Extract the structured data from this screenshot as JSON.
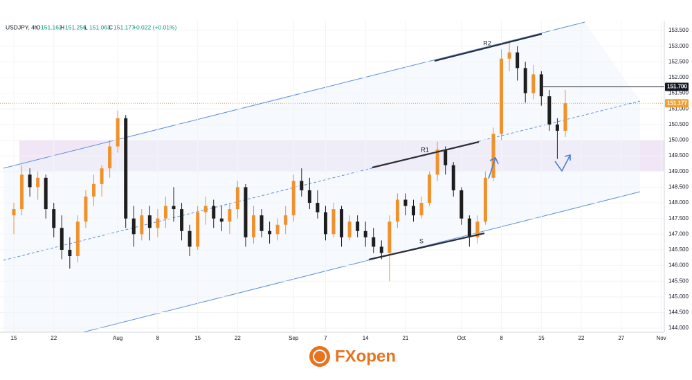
{
  "header": {
    "symbol": "USDJPY, 4h",
    "ohlc": [
      {
        "key": "O",
        "value": "151.162"
      },
      {
        "key": "H",
        "value": "151.256"
      },
      {
        "key": "L",
        "value": "151.063"
      },
      {
        "key": "C",
        "value": "151.177"
      }
    ],
    "change": "+0.022 (+0.01%)"
  },
  "chart_data": {
    "type": "candlestick",
    "categories": [
      "15",
      null,
      null,
      null,
      null,
      "22",
      null,
      null,
      null,
      null,
      null,
      null,
      null,
      "Aug",
      null,
      null,
      null,
      null,
      "8",
      null,
      null,
      null,
      null,
      "15",
      null,
      null,
      null,
      null,
      "22",
      null,
      null,
      null,
      null,
      null,
      null,
      "Sep",
      null,
      null,
      null,
      "7",
      null,
      null,
      null,
      null,
      "14",
      null,
      null,
      null,
      null,
      "21",
      null,
      null,
      null,
      null,
      null,
      null,
      "Oct",
      null,
      null,
      null,
      null,
      "8",
      null,
      null,
      null,
      null,
      "15",
      null,
      null,
      null,
      null,
      "22",
      null,
      null,
      null,
      null,
      "27",
      null,
      null,
      null,
      null,
      "Nov"
    ],
    "open": [
      147.6,
      147.8,
      148.9,
      148.5,
      148.8,
      147.8,
      147.2,
      146.5,
      146.3,
      147.4,
      148.2,
      148.6,
      149.1,
      149.8,
      150.7,
      147.5,
      147.0,
      147.6,
      147.2,
      147.5,
      147.9,
      147.8,
      147.1,
      146.6,
      147.7,
      147.9,
      147.5,
      147.4,
      147.8,
      148.5,
      146.9,
      147.6,
      147.1,
      147.0,
      147.3,
      147.6,
      148.7,
      148.4,
      148.0,
      147.7,
      147.0,
      147.8,
      146.9,
      147.4,
      147.1,
      146.9,
      146.6,
      146.4,
      147.4,
      148.1,
      147.9,
      147.6,
      148.0,
      148.9,
      149.7,
      149.2,
      148.4,
      147.5,
      146.9,
      147.4,
      148.8,
      150.2,
      152.6,
      152.8,
      152.3,
      151.5,
      152.1,
      151.4,
      150.5,
      150.3,
      null,
      null,
      null,
      null,
      null,
      null,
      null,
      null,
      null,
      null,
      null,
      null
    ],
    "high": [
      148.0,
      149.2,
      149.1,
      149.0,
      148.9,
      148.0,
      147.6,
      146.9,
      147.6,
      148.4,
      148.9,
      149.2,
      150.0,
      150.95,
      150.8,
      147.9,
      147.8,
      147.9,
      147.8,
      148.2,
      148.5,
      148.0,
      147.3,
      147.9,
      148.2,
      148.1,
      147.9,
      148.0,
      148.7,
      148.6,
      147.9,
      147.8,
      147.4,
      147.5,
      147.9,
      148.9,
      149.1,
      148.8,
      148.4,
      147.9,
      148.0,
      147.9,
      147.6,
      147.6,
      147.4,
      147.2,
      146.8,
      147.6,
      148.3,
      148.3,
      148.1,
      148.2,
      149.0,
      149.95,
      149.8,
      149.3,
      148.5,
      147.6,
      147.6,
      149.0,
      150.4,
      152.9,
      153.2,
      153.0,
      152.5,
      152.4,
      152.2,
      151.6,
      150.7,
      151.6,
      null,
      null,
      null,
      null,
      null,
      null,
      null,
      null,
      null,
      null,
      null,
      null
    ],
    "low": [
      147.0,
      147.6,
      148.2,
      148.1,
      147.5,
      146.9,
      146.2,
      145.9,
      146.1,
      147.2,
      147.9,
      148.2,
      148.8,
      149.6,
      147.2,
      146.6,
      146.8,
      146.8,
      146.9,
      147.2,
      147.4,
      146.8,
      146.3,
      146.5,
      147.3,
      147.2,
      147.1,
      147.0,
      147.5,
      146.6,
      146.7,
      146.9,
      146.7,
      146.8,
      147.0,
      147.4,
      148.2,
      147.8,
      147.5,
      146.8,
      146.9,
      146.6,
      146.8,
      146.9,
      146.6,
      146.4,
      146.2,
      145.5,
      147.2,
      147.6,
      147.4,
      147.5,
      147.9,
      148.7,
      148.9,
      148.2,
      147.3,
      146.6,
      146.7,
      147.3,
      148.7,
      150.0,
      152.2,
      151.9,
      151.2,
      151.3,
      151.1,
      150.3,
      149.4,
      150.1,
      null,
      null,
      null,
      null,
      null,
      null,
      null,
      null,
      null,
      null,
      null,
      null
    ],
    "close": [
      147.8,
      148.9,
      148.5,
      148.8,
      147.8,
      147.2,
      146.5,
      146.3,
      147.4,
      148.2,
      148.6,
      149.1,
      149.8,
      150.7,
      147.5,
      147.0,
      147.6,
      147.2,
      147.5,
      147.9,
      147.8,
      147.1,
      146.6,
      147.7,
      147.9,
      147.5,
      147.4,
      147.8,
      148.5,
      146.9,
      147.6,
      147.1,
      147.0,
      147.3,
      147.6,
      148.7,
      148.4,
      148.0,
      147.7,
      147.0,
      147.8,
      146.9,
      147.4,
      147.1,
      146.9,
      146.6,
      146.4,
      147.4,
      148.1,
      147.9,
      147.6,
      148.0,
      148.9,
      149.7,
      149.2,
      148.4,
      147.5,
      146.9,
      147.4,
      148.8,
      150.2,
      152.6,
      152.8,
      152.3,
      151.5,
      152.1,
      151.4,
      150.5,
      150.3,
      151.177,
      null,
      null,
      null,
      null,
      null,
      null,
      null,
      null,
      null,
      null,
      null,
      null
    ],
    "up_color": "#f0922b",
    "down_color": "#1e1e1e",
    "ylim": [
      143.87,
      153.81
    ],
    "yticks": [
      {
        "value": 144,
        "label": "144.000"
      },
      {
        "value": 144.5,
        "label": "144.500"
      },
      {
        "value": 145,
        "label": "145.000"
      },
      {
        "value": 145.5,
        "label": "145.500"
      },
      {
        "value": 146,
        "label": "146.000"
      },
      {
        "value": 146.5,
        "label": "146.500"
      },
      {
        "value": 147,
        "label": "147.000"
      },
      {
        "value": 147.5,
        "label": "147.500"
      },
      {
        "value": 148,
        "label": "148.000"
      },
      {
        "value": 148.5,
        "label": "148.500"
      },
      {
        "value": 149,
        "label": "149.000"
      },
      {
        "value": 149.5,
        "label": "149.500"
      },
      {
        "value": 150,
        "label": "150.000"
      },
      {
        "value": 150.5,
        "label": "150.500"
      },
      {
        "value": 151,
        "label": "151.000"
      },
      {
        "value": 151.5,
        "label": "151.500"
      },
      {
        "value": 152,
        "label": "152.000"
      },
      {
        "value": 152.5,
        "label": "152.500"
      },
      {
        "value": 153,
        "label": "153.000"
      },
      {
        "value": 153.5,
        "label": "153.500"
      }
    ],
    "price_lines": [
      {
        "value": 151.7,
        "label": "151.700",
        "color": "#131722"
      },
      {
        "value": 151.177,
        "label": "151.177",
        "color": "#f0a030"
      }
    ],
    "annotations": [
      "R2",
      "R1",
      "S"
    ]
  },
  "logo": "FXopen"
}
